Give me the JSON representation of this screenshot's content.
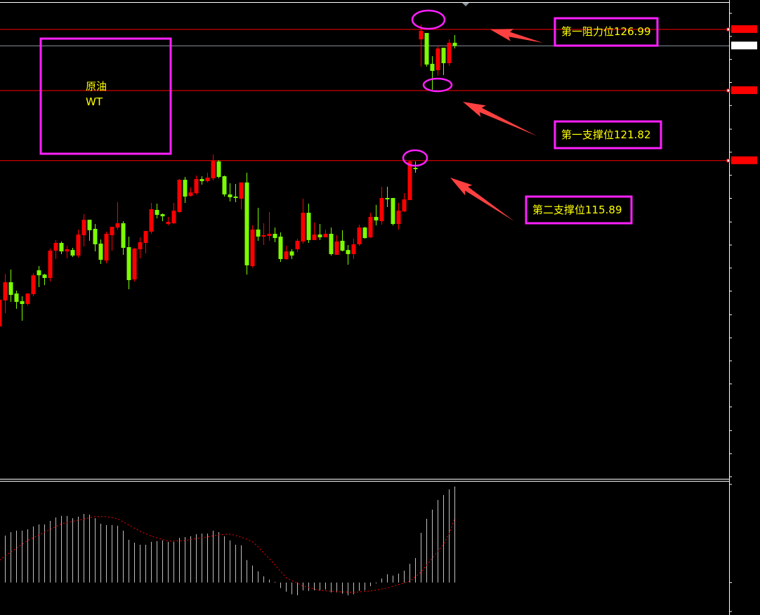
{
  "chart_data": [
    {
      "type": "candlestick",
      "title": "",
      "price_axis": {
        "ylim": [
          89.15,
          128.35
        ],
        "ticks": [
          "128.35",
          "126.40",
          "124.45",
          "122.50",
          "120.55",
          "118.55",
          "116.60",
          "114.65",
          "112.70",
          "110.70",
          "108.75",
          "106.80",
          "104.85",
          "102.85",
          "100.90",
          "98.95",
          "97.00",
          "95.05",
          "93.05",
          "91.10",
          "89.15"
        ]
      },
      "candles": [
        [
          101.86,
          104.24,
          101.8,
          104.12
        ],
        [
          104.06,
          106.31,
          102.99,
          105.6
        ],
        [
          105.6,
          106.67,
          103.94,
          104.53
        ],
        [
          104.65,
          104.89,
          103.35,
          103.94
        ],
        [
          104.0,
          104.41,
          102.34,
          103.76
        ],
        [
          103.76,
          104.65,
          103.64,
          104.65
        ],
        [
          104.59,
          106.37,
          104.41,
          106.19
        ],
        [
          106.61,
          106.97,
          105.19,
          106.19
        ],
        [
          106.25,
          106.31,
          105.36,
          105.96
        ],
        [
          105.96,
          108.45,
          105.66,
          108.27
        ],
        [
          108.27,
          109.17,
          107.56,
          108.93
        ],
        [
          108.93,
          109.05,
          107.98,
          108.21
        ],
        [
          108.21,
          108.69,
          107.62,
          108.39
        ],
        [
          108.33,
          108.51,
          107.74,
          107.86
        ],
        [
          107.86,
          110.06,
          107.68,
          109.64
        ],
        [
          109.58,
          111.36,
          108.63,
          110.89
        ],
        [
          110.89,
          110.89,
          109.11,
          110.0
        ],
        [
          110.12,
          110.53,
          108.21,
          108.81
        ],
        [
          108.87,
          109.22,
          107.15,
          107.5
        ],
        [
          107.44,
          109.88,
          107.2,
          109.7
        ],
        [
          109.58,
          110.29,
          108.27,
          110.29
        ],
        [
          110.23,
          112.37,
          110.06,
          110.59
        ],
        [
          110.59,
          110.77,
          107.92,
          108.51
        ],
        [
          108.57,
          109.46,
          105.01,
          105.78
        ],
        [
          105.84,
          108.51,
          105.66,
          108.45
        ],
        [
          108.39,
          109.4,
          107.62,
          108.99
        ],
        [
          108.93,
          109.94,
          108.04,
          109.94
        ],
        [
          109.88,
          112.31,
          109.7,
          111.78
        ],
        [
          111.72,
          112.25,
          111.01,
          111.3
        ],
        [
          111.36,
          111.42,
          110.77,
          111.18
        ],
        [
          110.53,
          111.13,
          110.41,
          110.71
        ],
        [
          110.59,
          112.31,
          110.53,
          111.66
        ],
        [
          111.54,
          114.33,
          111.48,
          114.27
        ],
        [
          114.27,
          114.51,
          112.31,
          112.85
        ],
        [
          112.91,
          113.62,
          112.85,
          113.2
        ],
        [
          113.14,
          114.63,
          113.03,
          114.33
        ],
        [
          114.33,
          114.57,
          113.86,
          114.15
        ],
        [
          114.15,
          114.87,
          114.04,
          114.45
        ],
        [
          114.39,
          116.41,
          114.21,
          115.88
        ],
        [
          115.82,
          115.94,
          114.39,
          114.51
        ],
        [
          114.57,
          114.63,
          112.85,
          113.03
        ],
        [
          113.03,
          113.98,
          112.43,
          112.79
        ],
        [
          112.85,
          113.92,
          112.37,
          112.73
        ],
        [
          112.67,
          114.04,
          111.78,
          114.04
        ],
        [
          114.04,
          114.87,
          106.25,
          107.03
        ],
        [
          106.97,
          110.41,
          106.85,
          110.06
        ],
        [
          110.06,
          111.9,
          109.11,
          109.46
        ],
        [
          109.46,
          110.59,
          108.75,
          109.58
        ],
        [
          109.52,
          111.54,
          109.11,
          109.7
        ],
        [
          109.7,
          110.23,
          108.99,
          109.34
        ],
        [
          109.46,
          109.82,
          107.32,
          107.56
        ],
        [
          107.56,
          108.69,
          107.5,
          108.21
        ],
        [
          108.21,
          108.39,
          107.56,
          107.86
        ],
        [
          108.39,
          109.28,
          108.16,
          109.11
        ],
        [
          109.05,
          112.67,
          108.87,
          111.48
        ],
        [
          111.48,
          112.25,
          108.93,
          109.17
        ],
        [
          109.17,
          110.65,
          109.17,
          109.64
        ],
        [
          109.64,
          110.53,
          109.17,
          109.4
        ],
        [
          109.4,
          110.06,
          109.4,
          109.7
        ],
        [
          109.7,
          110.23,
          107.86,
          107.98
        ],
        [
          107.92,
          109.58,
          107.92,
          109.05
        ],
        [
          109.11,
          110.0,
          108.21,
          108.27
        ],
        [
          108.33,
          108.75,
          107.09,
          107.98
        ],
        [
          107.98,
          109.28,
          107.56,
          108.81
        ],
        [
          108.81,
          110.47,
          108.69,
          110.23
        ],
        [
          110.23,
          110.29,
          109.28,
          109.34
        ],
        [
          109.4,
          111.48,
          109.34,
          111.13
        ],
        [
          111.13,
          112.14,
          110.41,
          110.83
        ],
        [
          110.77,
          113.68,
          110.47,
          112.73
        ],
        [
          112.73,
          113.68,
          111.96,
          112.61
        ],
        [
          112.73,
          112.73,
          110.41,
          110.53
        ],
        [
          110.53,
          112.31,
          110.06,
          111.66
        ],
        [
          111.6,
          113.14,
          111.54,
          112.61
        ],
        [
          112.55,
          115.94,
          112.55,
          115.82
        ],
        [
          115.28,
          115.82,
          114.87,
          115.17
        ],
        [
          126.15,
          127.4,
          123.84,
          126.87
        ],
        [
          126.69,
          126.69,
          123.84,
          124.02
        ],
        [
          124.08,
          124.73,
          121.88,
          123.48
        ],
        [
          123.54,
          125.62,
          123.07,
          125.38
        ],
        [
          125.44,
          125.44,
          123.12,
          124.13
        ],
        [
          124.13,
          126.15,
          123.9,
          125.86
        ],
        [
          125.86,
          126.51,
          125.38,
          125.6
        ]
      ],
      "candle_fields": [
        "open",
        "high",
        "low",
        "close"
      ],
      "bull_color": "#ff0000",
      "bear_color": "#7cfc00",
      "levels": [
        {
          "price": 126.99,
          "label": "126.99",
          "color": "#ff0000"
        },
        {
          "price": 121.82,
          "label": "121.82",
          "color": "#ff0000"
        },
        {
          "price": 115.89,
          "label": "115.89",
          "color": "#ff0000"
        }
      ],
      "current_price": {
        "price": 125.6,
        "label": "125.60",
        "color": "#8c96a0"
      }
    },
    {
      "type": "bar",
      "indicator": "MACD",
      "ylim": [
        -1.301,
        4.406
      ],
      "ticks": [
        "4.406",
        "0.00",
        "-1.301"
      ],
      "histogram": [
        null,
        2.11,
        2.26,
        2.33,
        2.33,
        2.39,
        2.52,
        2.61,
        2.61,
        2.77,
        2.92,
        2.99,
        2.99,
        2.89,
        2.96,
        3.08,
        3.05,
        2.89,
        2.64,
        2.58,
        2.58,
        2.55,
        2.33,
        1.92,
        1.79,
        1.7,
        1.7,
        1.83,
        1.86,
        1.89,
        1.83,
        1.83,
        2.01,
        2.04,
        2.08,
        2.17,
        2.2,
        2.2,
        2.33,
        2.26,
        2.08,
        1.89,
        1.7,
        1.67,
        1.01,
        0.76,
        0.5,
        0.28,
        0.13,
        0.03,
        -0.25,
        -0.41,
        -0.53,
        -0.57,
        -0.35,
        -0.38,
        -0.35,
        -0.35,
        -0.31,
        -0.44,
        -0.44,
        -0.5,
        -0.57,
        -0.53,
        -0.38,
        -0.35,
        -0.16,
        -0.04,
        0.18,
        0.37,
        0.31,
        0.4,
        0.53,
        0.84,
        1.1,
        2.23,
        2.86,
        3.27,
        3.71,
        3.93,
        4.18,
        4.31
      ],
      "signal": [
        1.0,
        1.2,
        1.37,
        1.55,
        1.72,
        1.89,
        2.01,
        2.14,
        2.26,
        2.39,
        2.51,
        2.64,
        2.69,
        2.75,
        2.8,
        2.85,
        2.91,
        2.96,
        2.96,
        2.96,
        2.91,
        2.86,
        2.72,
        2.58,
        2.44,
        2.3,
        2.19,
        2.08,
        2.01,
        1.93,
        1.86,
        1.87,
        1.88,
        1.89,
        1.93,
        1.97,
        2.01,
        2.05,
        2.1,
        2.14,
        2.16,
        2.17,
        2.11,
        2.04,
        1.94,
        1.83,
        1.6,
        1.33,
        1.07,
        0.79,
        0.5,
        0.22,
        0.09,
        -0.03,
        -0.16,
        -0.22,
        -0.29,
        -0.35,
        -0.37,
        -0.39,
        -0.41,
        -0.42,
        -0.43,
        -0.44,
        -0.42,
        -0.4,
        -0.38,
        -0.34,
        -0.29,
        -0.25,
        -0.17,
        -0.09,
        -0.02,
        0.06,
        0.26,
        0.47,
        0.78,
        1.1,
        1.41,
        1.73,
        2.2,
        2.89
      ],
      "histogram_color": "#c0c0c0",
      "signal_color": "#ff0000"
    }
  ],
  "annotations": {
    "symbol_box": {
      "line1": "原油",
      "line2": "WT"
    },
    "resistance_1": "第一阻力位126.99",
    "support_1": "第一支撑位121.82",
    "support_2": "第二支撑位115.89",
    "box_color": "#ff20ff",
    "text_color": "#ffff00",
    "arrow_color": "#ff4040"
  }
}
